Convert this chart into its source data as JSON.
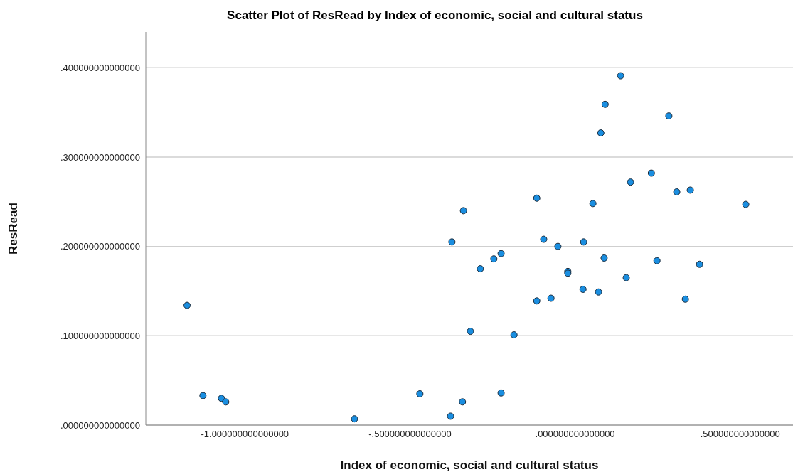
{
  "chart_data": {
    "type": "scatter",
    "title": "Scatter Plot of ResRead by Index of economic, social and cultural status",
    "xlabel": "Index of economic, social and cultural status",
    "ylabel": "ResRead",
    "x": [
      -1.175,
      -1.127,
      -1.071,
      -1.058,
      -0.668,
      -0.47,
      -0.377,
      -0.341,
      -0.373,
      -0.338,
      -0.317,
      -0.287,
      -0.246,
      -0.224,
      -0.224,
      -0.185,
      -0.116,
      -0.116,
      -0.095,
      -0.073,
      -0.052,
      -0.022,
      -0.022,
      0.024,
      0.026,
      0.054,
      0.071,
      0.078,
      0.091,
      0.088,
      0.138,
      0.155,
      0.168,
      0.231,
      0.248,
      0.284,
      0.308,
      0.334,
      0.349,
      0.377,
      0.517
    ],
    "values": [
      0.134,
      0.033,
      0.03,
      0.026,
      0.007,
      0.035,
      0.01,
      0.026,
      0.205,
      0.24,
      0.105,
      0.175,
      0.186,
      0.192,
      0.036,
      0.101,
      0.254,
      0.139,
      0.208,
      0.142,
      0.2,
      0.172,
      0.17,
      0.152,
      0.205,
      0.248,
      0.149,
      0.327,
      0.359,
      0.187,
      0.391,
      0.165,
      0.272,
      0.282,
      0.184,
      0.346,
      0.261,
      0.141,
      0.263,
      0.18,
      0.247
    ],
    "color": "#1a8ee0",
    "marker": "circle",
    "xlim": [
      -1.3,
      0.66
    ],
    "ylim": [
      0,
      0.44
    ],
    "xticks": [
      {
        "value": -1,
        "label": "-1.000000000000000"
      },
      {
        "value": -0.5,
        "label": "-.500000000000000"
      },
      {
        "value": 0,
        "label": ".000000000000000"
      },
      {
        "value": 0.5,
        "label": ".500000000000000"
      }
    ],
    "yticks": [
      {
        "value": 0,
        "label": ".000000000000000"
      },
      {
        "value": 0.1,
        "label": ".100000000000000"
      },
      {
        "value": 0.2,
        "label": ".200000000000000"
      },
      {
        "value": 0.3,
        "label": ".300000000000000"
      },
      {
        "value": 0.4,
        "label": ".400000000000000"
      }
    ],
    "grid": "y"
  }
}
